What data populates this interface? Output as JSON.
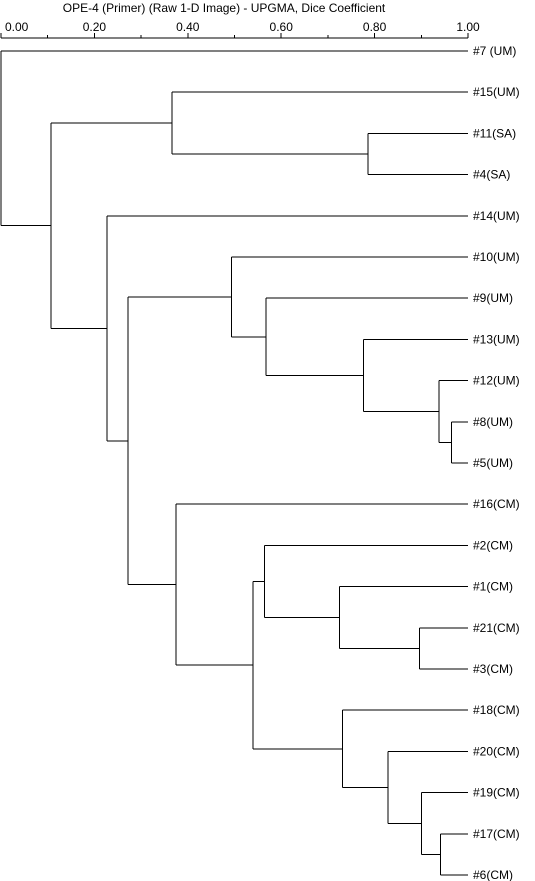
{
  "title": "OPE-4 (Primer)  (Raw 1-D Image) - UPGMA, Dice Coefficient",
  "axis": {
    "min": 0,
    "max": 1,
    "ticks": [
      {
        "value": 0.0,
        "label": "0.00"
      },
      {
        "value": 0.2,
        "label": "0.20"
      },
      {
        "value": 0.4,
        "label": "0.40"
      },
      {
        "value": 0.6,
        "label": "0.60"
      },
      {
        "value": 0.8,
        "label": "0.80"
      },
      {
        "value": 1.0,
        "label": "1.00"
      }
    ],
    "minor_ticks": [
      0.1,
      0.3,
      0.5,
      0.7,
      0.9
    ]
  },
  "leaves": [
    "#7 (UM)",
    "#15(UM)",
    "#11(SA)",
    "#4(SA)",
    "#14(UM)",
    "#10(UM)",
    "#9(UM)",
    "#13(UM)",
    "#12(UM)",
    "#8(UM)",
    "#5(UM)",
    "#16(CM)",
    "#2(CM)",
    "#1(CM)",
    "#21(CM)",
    "#3(CM)",
    "#18(CM)",
    "#20(CM)",
    "#19(CM)",
    "#17(CM)",
    "#6(CM)"
  ],
  "tree": {
    "s": 0.0,
    "c": [
      {
        "l": 0
      },
      {
        "s": 0.107,
        "c": [
          {
            "s": 0.366,
            "c": [
              {
                "l": 1
              },
              {
                "s": 0.786,
                "c": [
                  {
                    "l": 2
                  },
                  {
                    "l": 3
                  }
                ]
              }
            ]
          },
          {
            "s": 0.227,
            "c": [
              {
                "l": 4
              },
              {
                "s": 0.272,
                "c": [
                  {
                    "s": 0.494,
                    "c": [
                      {
                        "l": 5
                      },
                      {
                        "s": 0.567,
                        "c": [
                          {
                            "l": 6
                          },
                          {
                            "s": 0.776,
                            "c": [
                              {
                                "l": 7
                              },
                              {
                                "s": 0.938,
                                "c": [
                                  {
                                    "l": 8
                                  },
                                  {
                                    "s": 0.965,
                                    "c": [
                                      {
                                        "l": 9
                                      },
                                      {
                                        "l": 10
                                      }
                                    ]
                                  }
                                ]
                              }
                            ]
                          }
                        ]
                      }
                    ]
                  },
                  {
                    "s": 0.375,
                    "c": [
                      {
                        "l": 11
                      },
                      {
                        "s": 0.54,
                        "c": [
                          {
                            "s": 0.564,
                            "c": [
                              {
                                "l": 12
                              },
                              {
                                "s": 0.725,
                                "c": [
                                  {
                                    "l": 13
                                  },
                                  {
                                    "s": 0.896,
                                    "c": [
                                      {
                                        "l": 14
                                      },
                                      {
                                        "l": 15
                                      }
                                    ]
                                  }
                                ]
                              }
                            ]
                          },
                          {
                            "s": 0.731,
                            "c": [
                              {
                                "l": 16
                              },
                              {
                                "s": 0.829,
                                "c": [
                                  {
                                    "l": 17
                                  },
                                  {
                                    "s": 0.9,
                                    "c": [
                                      {
                                        "l": 18
                                      },
                                      {
                                        "s": 0.941,
                                        "c": [
                                          {
                                            "l": 19
                                          },
                                          {
                                            "l": 20
                                          }
                                        ]
                                      }
                                    ]
                                  }
                                ]
                              }
                            ]
                          }
                        ]
                      }
                    ]
                  }
                ]
              }
            ]
          }
        ]
      }
    ]
  }
}
